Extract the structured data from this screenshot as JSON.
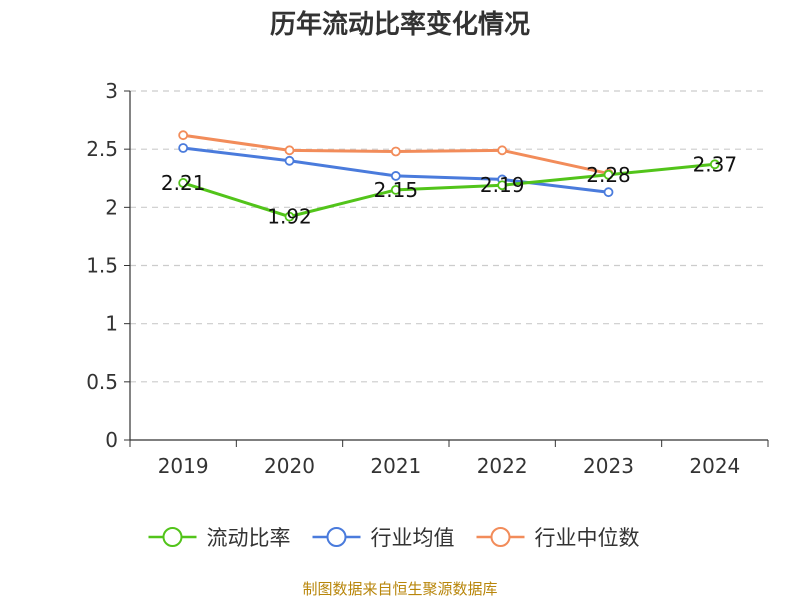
{
  "chart_data": {
    "type": "line",
    "title": "历年流动比率变化情况",
    "categories": [
      "2019",
      "2020",
      "2021",
      "2022",
      "2023",
      "2024"
    ],
    "ylim": [
      0,
      3
    ],
    "yticks": [
      "0",
      "0.5",
      "1",
      "1.5",
      "2",
      "2.5",
      "3"
    ],
    "grid": true,
    "legend_position": "bottom",
    "series": [
      {
        "name": "流动比率",
        "color": "#52c41a",
        "values": [
          2.21,
          1.92,
          2.15,
          2.19,
          2.28,
          2.37
        ],
        "labels": [
          "2.21",
          "1.92",
          "2.15",
          "2.19",
          "2.28",
          "2.37"
        ]
      },
      {
        "name": "行业均值",
        "color": "#4a7bdc",
        "values": [
          2.51,
          2.4,
          2.27,
          2.24,
          2.13,
          null
        ]
      },
      {
        "name": "行业中位数",
        "color": "#f28c5a",
        "values": [
          2.62,
          2.49,
          2.48,
          2.49,
          2.29,
          null
        ]
      }
    ],
    "source": "制图数据来自恒生聚源数据库"
  }
}
